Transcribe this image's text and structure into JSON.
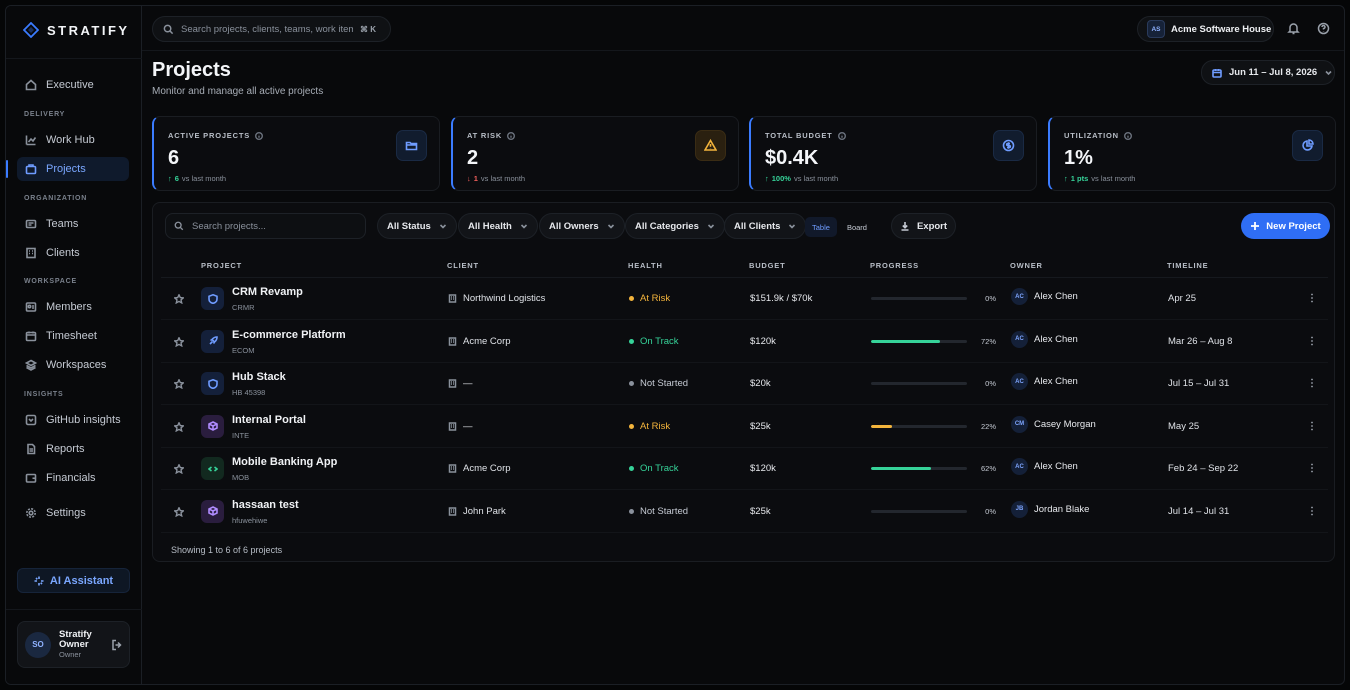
{
  "brand": {
    "name": "STRATIFY"
  },
  "sidebar": {
    "top_item": {
      "label": "Executive",
      "icon": "home-icon"
    },
    "sections": [
      {
        "title": "DELIVERY",
        "items": [
          {
            "label": "Work Hub",
            "icon": "chart-icon"
          },
          {
            "label": "Projects",
            "icon": "briefcase-icon",
            "active": true
          }
        ]
      },
      {
        "title": "ORGANIZATION",
        "items": [
          {
            "label": "Teams",
            "icon": "teams-icon"
          },
          {
            "label": "Clients",
            "icon": "building-icon"
          }
        ]
      },
      {
        "title": "WORKSPACE",
        "items": [
          {
            "label": "Members",
            "icon": "members-icon"
          },
          {
            "label": "Timesheet",
            "icon": "calendar-icon"
          },
          {
            "label": "Workspaces",
            "icon": "layers-icon"
          }
        ]
      },
      {
        "title": "INSIGHTS",
        "items": [
          {
            "label": "GitHub insights",
            "icon": "github-icon"
          },
          {
            "label": "Reports",
            "icon": "file-icon"
          },
          {
            "label": "Financials",
            "icon": "wallet-icon"
          }
        ]
      }
    ],
    "settings_label": "Settings",
    "ai_label": "AI Assistant",
    "user": {
      "initials": "SO",
      "name_line1": "Stratify",
      "name_line2": "Owner",
      "role": "Owner"
    }
  },
  "topbar": {
    "search_placeholder": "Search projects, clients, teams, work items...",
    "shortcut": "⌘ K",
    "workspace": {
      "initials": "AS",
      "name": "Acme Software House"
    }
  },
  "page": {
    "title": "Projects",
    "subtitle": "Monitor and manage all active projects",
    "date_range": "Jun 11 – Jul 8, 2026"
  },
  "stats": [
    {
      "label": "ACTIVE PROJECTS",
      "value": "6",
      "delta": "6",
      "delta_dir": "up",
      "suffix": "vs last month",
      "icon": "folder-icon"
    },
    {
      "label": "AT RISK",
      "value": "2",
      "delta": "1",
      "delta_dir": "down",
      "suffix": "vs last month",
      "icon": "warning-icon"
    },
    {
      "label": "TOTAL BUDGET",
      "value": "$0.4K",
      "delta": "100%",
      "delta_dir": "up",
      "suffix": "vs last month",
      "icon": "dollar-icon"
    },
    {
      "label": "UTILIZATION",
      "value": "1%",
      "delta": "1 pts",
      "delta_dir": "up",
      "suffix": "vs last month",
      "icon": "pie-icon"
    }
  ],
  "filters": {
    "search_placeholder": "Search projects...",
    "dropdowns": [
      "All Status",
      "All Health",
      "All Owners",
      "All Categories",
      "All Clients"
    ],
    "view_table": "Table",
    "view_board": "Board",
    "export_label": "Export",
    "new_label": "New Project"
  },
  "table": {
    "columns": [
      "PROJECT",
      "CLIENT",
      "HEALTH",
      "BUDGET",
      "PROGRESS",
      "OWNER",
      "TIMELINE"
    ],
    "rows": [
      {
        "name": "CRM Revamp",
        "code": "CRMR",
        "icon": "shield-icon",
        "icon_color": "blue",
        "client": "Northwind Logistics",
        "health": "At Risk",
        "health_color": "#f3b43c",
        "budget": "$151.9k / $70k",
        "progress": 0,
        "progress_label": "0%",
        "owner_initials": "AC",
        "owner": "Alex Chen",
        "timeline": "Apr 25"
      },
      {
        "name": "E-commerce Platform",
        "code": "ECOM",
        "icon": "rocket-icon",
        "icon_color": "blue",
        "client": "Acme Corp",
        "health": "On Track",
        "health_color": "#36d399",
        "budget": "$120k",
        "progress": 72,
        "progress_label": "72%",
        "owner_initials": "AC",
        "owner": "Alex Chen",
        "timeline": "Mar 26 – Aug 8"
      },
      {
        "name": "Hub Stack",
        "code": "HB 45398",
        "icon": "shield-icon",
        "icon_color": "blue",
        "client": "—",
        "health": "Not Started",
        "health_color": "#8a919c",
        "budget": "$20k",
        "progress": 0,
        "progress_label": "0%",
        "owner_initials": "AC",
        "owner": "Alex Chen",
        "timeline": "Jul 15 – Jul 31"
      },
      {
        "name": "Internal Portal",
        "code": "INTE",
        "icon": "box-icon",
        "icon_color": "purple",
        "client": "—",
        "health": "At Risk",
        "health_color": "#f3b43c",
        "budget": "$25k",
        "progress": 22,
        "progress_label": "22%",
        "owner_initials": "CM",
        "owner": "Casey Morgan",
        "timeline": "May 25"
      },
      {
        "name": "Mobile Banking App",
        "code": "MOB",
        "icon": "code-icon",
        "icon_color": "green",
        "client": "Acme Corp",
        "health": "On Track",
        "health_color": "#36d399",
        "budget": "$120k",
        "progress": 62,
        "progress_label": "62%",
        "owner_initials": "AC",
        "owner": "Alex Chen",
        "timeline": "Feb 24 – Sep 22"
      },
      {
        "name": "hassaan test",
        "code": "hfuwehiwe",
        "icon": "box-icon",
        "icon_color": "purple",
        "client": "John Park",
        "health": "Not Started",
        "health_color": "#8a919c",
        "budget": "$25k",
        "progress": 0,
        "progress_label": "0%",
        "owner_initials": "JB",
        "owner": "Jordan Blake",
        "timeline": "Jul 14 – Jul 31"
      }
    ],
    "footer": "Showing 1 to 6 of 6 projects"
  },
  "colors": {
    "accent": "#2f6ef5",
    "up": "#36d399",
    "down": "#f25f5c",
    "warning": "#f3b43c"
  }
}
